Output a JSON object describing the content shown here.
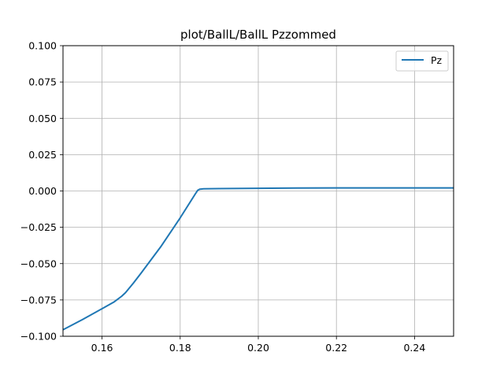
{
  "chart_data": {
    "type": "line",
    "title": "plot/BallL/BallL Pzzommed",
    "xlabel": "",
    "ylabel": "",
    "xlim": [
      0.15,
      0.25
    ],
    "ylim": [
      -0.1,
      0.1
    ],
    "xticks": [
      0.16,
      0.18,
      0.2,
      0.22,
      0.24
    ],
    "xtick_labels": [
      "0.16",
      "0.18",
      "0.20",
      "0.22",
      "0.24"
    ],
    "yticks": [
      0.1,
      0.075,
      0.05,
      0.025,
      0.0,
      -0.025,
      -0.05,
      -0.075,
      -0.1
    ],
    "ytick_labels": [
      "0.100",
      "0.075",
      "0.050",
      "0.025",
      "0.000",
      "−0.025",
      "−0.050",
      "−0.075",
      "−0.100"
    ],
    "grid": true,
    "legend_position": "top-right",
    "series": [
      {
        "name": "Pz",
        "color": "#1f77b4",
        "x": [
          0.15,
          0.155,
          0.16,
          0.163,
          0.165,
          0.166,
          0.168,
          0.17,
          0.175,
          0.18,
          0.184,
          0.1845,
          0.185,
          0.186,
          0.19,
          0.2,
          0.21,
          0.22,
          0.23,
          0.24,
          0.25
        ],
        "y": [
          -0.0955,
          -0.0885,
          -0.081,
          -0.0765,
          -0.0725,
          -0.07,
          -0.0635,
          -0.0565,
          -0.0385,
          -0.0185,
          -0.0015,
          0.0005,
          0.0012,
          0.0015,
          0.0016,
          0.0018,
          0.002,
          0.0021,
          0.0021,
          0.0021,
          0.0021
        ]
      }
    ]
  }
}
